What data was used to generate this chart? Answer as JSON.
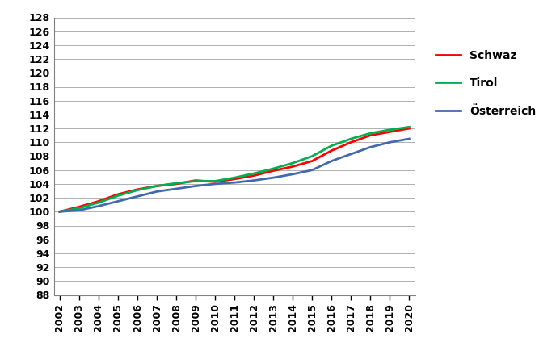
{
  "years": [
    2002,
    2003,
    2004,
    2005,
    2006,
    2007,
    2008,
    2009,
    2010,
    2011,
    2012,
    2013,
    2014,
    2015,
    2016,
    2017,
    2018,
    2019,
    2020
  ],
  "schwaz": [
    100.0,
    100.7,
    101.5,
    102.5,
    103.2,
    103.7,
    104.0,
    104.5,
    104.3,
    104.7,
    105.2,
    105.9,
    106.5,
    107.3,
    108.8,
    110.0,
    111.0,
    111.5,
    112.0
  ],
  "tirol": [
    100.0,
    100.5,
    101.3,
    102.3,
    103.1,
    103.7,
    104.1,
    104.4,
    104.4,
    104.9,
    105.5,
    106.2,
    107.0,
    108.0,
    109.5,
    110.5,
    111.3,
    111.8,
    112.2
  ],
  "oesterreich": [
    100.0,
    100.2,
    100.8,
    101.5,
    102.2,
    102.9,
    103.3,
    103.7,
    104.0,
    104.2,
    104.5,
    104.9,
    105.4,
    106.0,
    107.3,
    108.3,
    109.3,
    110.0,
    110.5
  ],
  "schwaz_color": "#ff0000",
  "tirol_color": "#00b050",
  "oesterreich_color": "#4169b0",
  "ylim": [
    88,
    128
  ],
  "ytick_step": 2,
  "background_color": "#ffffff",
  "grid_color": "#b0b0b0",
  "legend_labels": [
    "Schwaz",
    "Tirol",
    "Österreich"
  ],
  "line_width": 2.0,
  "tick_fontsize": 9,
  "legend_fontsize": 10
}
